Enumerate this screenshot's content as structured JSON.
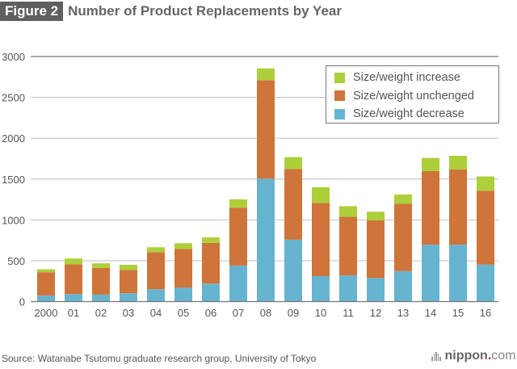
{
  "header": {
    "figure_tag": "Figure 2",
    "title": "Number of Product Replacements by Year"
  },
  "footer": {
    "source": "Source: Watanabe Tsutomu graduate research group, University of Tokyo",
    "logo_brand": "nippon",
    "logo_dot": ".",
    "logo_tld": "com"
  },
  "colors": {
    "increase": "#ADCF3A",
    "unchanged": "#CF743A",
    "decrease": "#66B4D0"
  },
  "chart_data": {
    "type": "bar",
    "stacked": true,
    "title": "Number of Product Replacements by Year",
    "xlabel": "",
    "ylabel": "",
    "ylim": [
      0,
      3000
    ],
    "yticks": [
      0,
      500,
      1000,
      1500,
      2000,
      2500,
      3000
    ],
    "grid": true,
    "legend_position": "top-right",
    "categories": [
      "2000",
      "01",
      "02",
      "03",
      "04",
      "05",
      "06",
      "07",
      "08",
      "09",
      "10",
      "11",
      "12",
      "13",
      "14",
      "15",
      "16"
    ],
    "series": [
      {
        "name": "Size/weight decrease",
        "color_key": "decrease",
        "values": [
          75,
          92,
          85,
          102,
          151,
          172,
          220,
          441,
          1505,
          758,
          311,
          320,
          289,
          373,
          696,
          696,
          452
        ]
      },
      {
        "name": "Size/weight unchenged",
        "color_key": "unchanged",
        "values": [
          284,
          363,
          326,
          286,
          452,
          473,
          498,
          709,
          1205,
          865,
          895,
          720,
          706,
          823,
          901,
          921,
          905
        ]
      },
      {
        "name": "Size/weight increase",
        "color_key": "increase",
        "values": [
          36,
          72,
          57,
          63,
          62,
          69,
          69,
          102,
          145,
          146,
          194,
          128,
          105,
          115,
          162,
          168,
          175
        ]
      }
    ],
    "legend_order": [
      "Size/weight increase",
      "Size/weight unchenged",
      "Size/weight decrease"
    ]
  }
}
